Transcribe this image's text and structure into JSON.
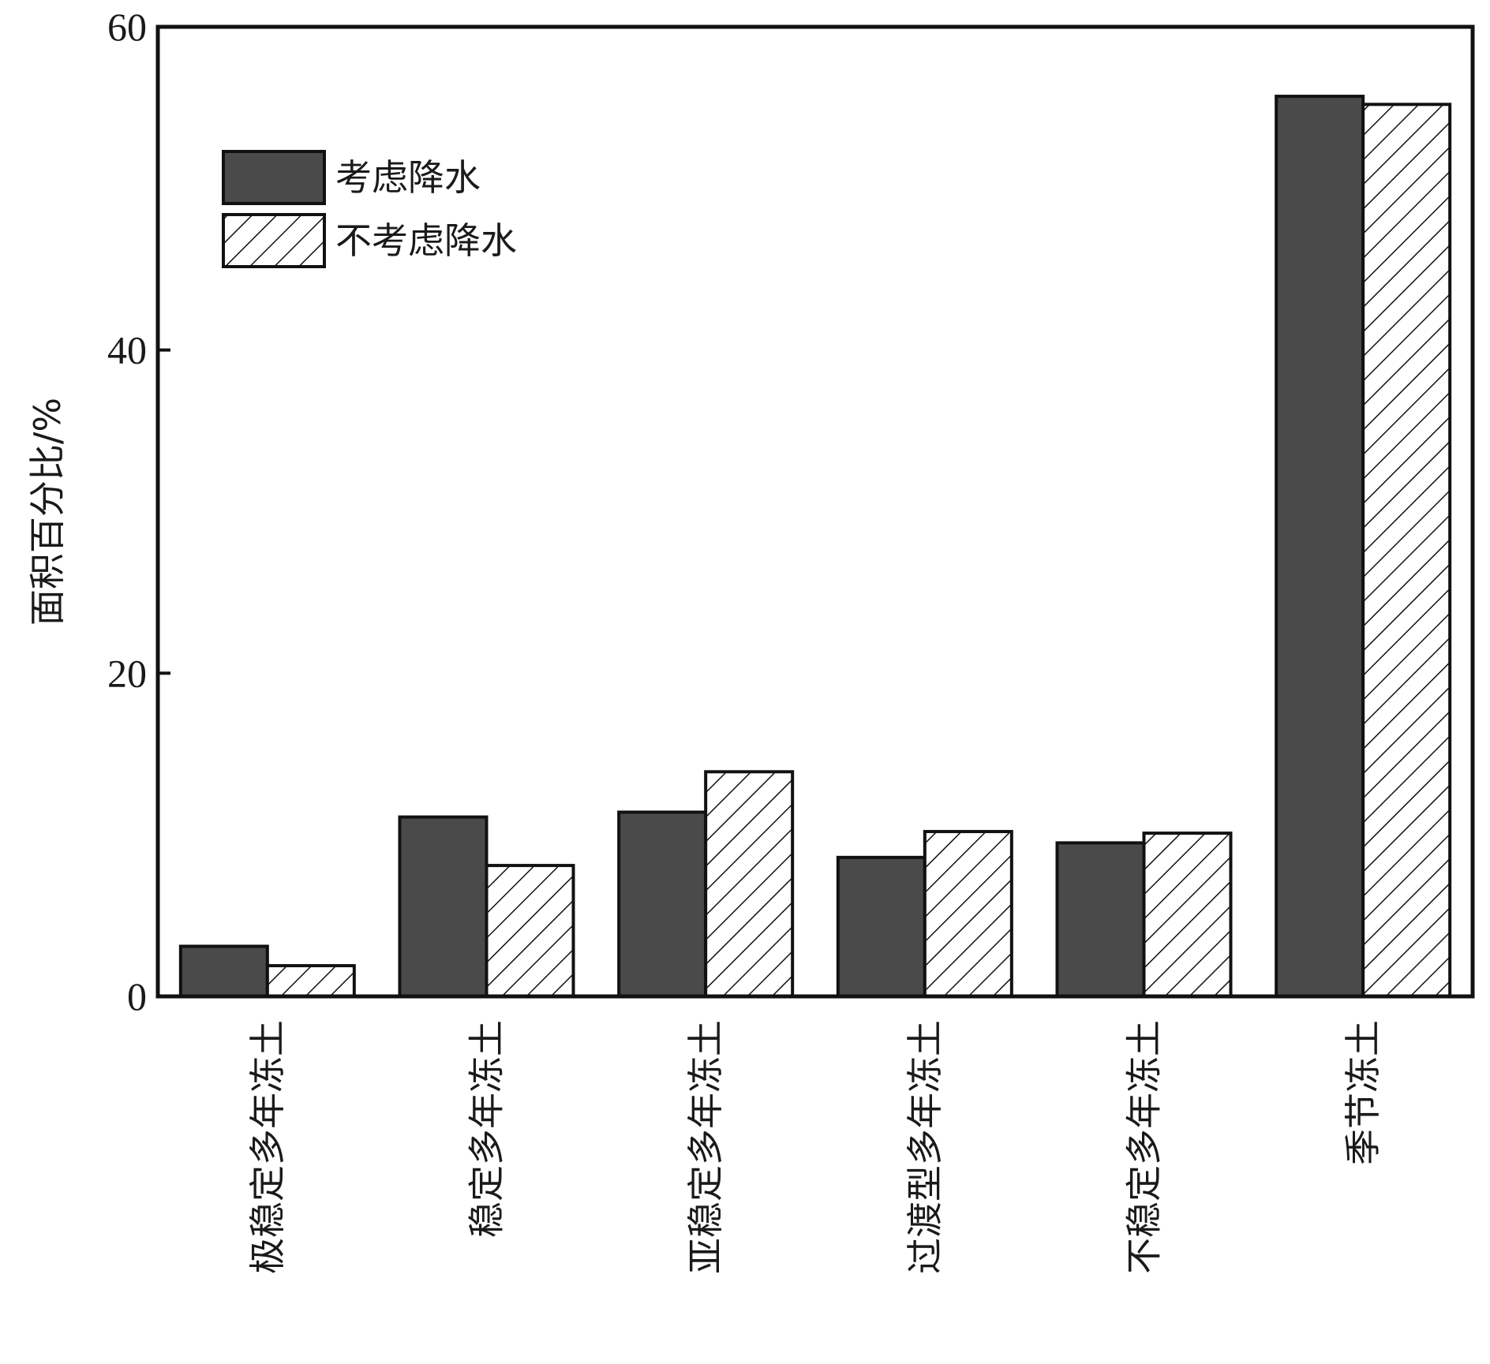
{
  "chart_data": {
    "type": "bar",
    "title": "",
    "xlabel": "",
    "ylabel": "面积百分比/%",
    "ylim": [
      0,
      60
    ],
    "yticks": [
      0,
      20,
      40,
      60
    ],
    "grid": false,
    "legend_position": "top-left",
    "categories": [
      "极稳定多年冻土",
      "稳定多年冻土",
      "亚稳定多年冻土",
      "过渡型多年冻土",
      "不稳定多年冻土",
      "季节冻土"
    ],
    "series": [
      {
        "name": "考虑降水",
        "style": "solid",
        "color": "#4a4a4a",
        "values": [
          3.1,
          11.1,
          11.4,
          8.6,
          9.5,
          55.7
        ]
      },
      {
        "name": "不考虑降水",
        "style": "hatched",
        "color": "#ffffff",
        "values": [
          1.9,
          8.1,
          13.9,
          10.2,
          10.1,
          55.2
        ]
      }
    ]
  }
}
